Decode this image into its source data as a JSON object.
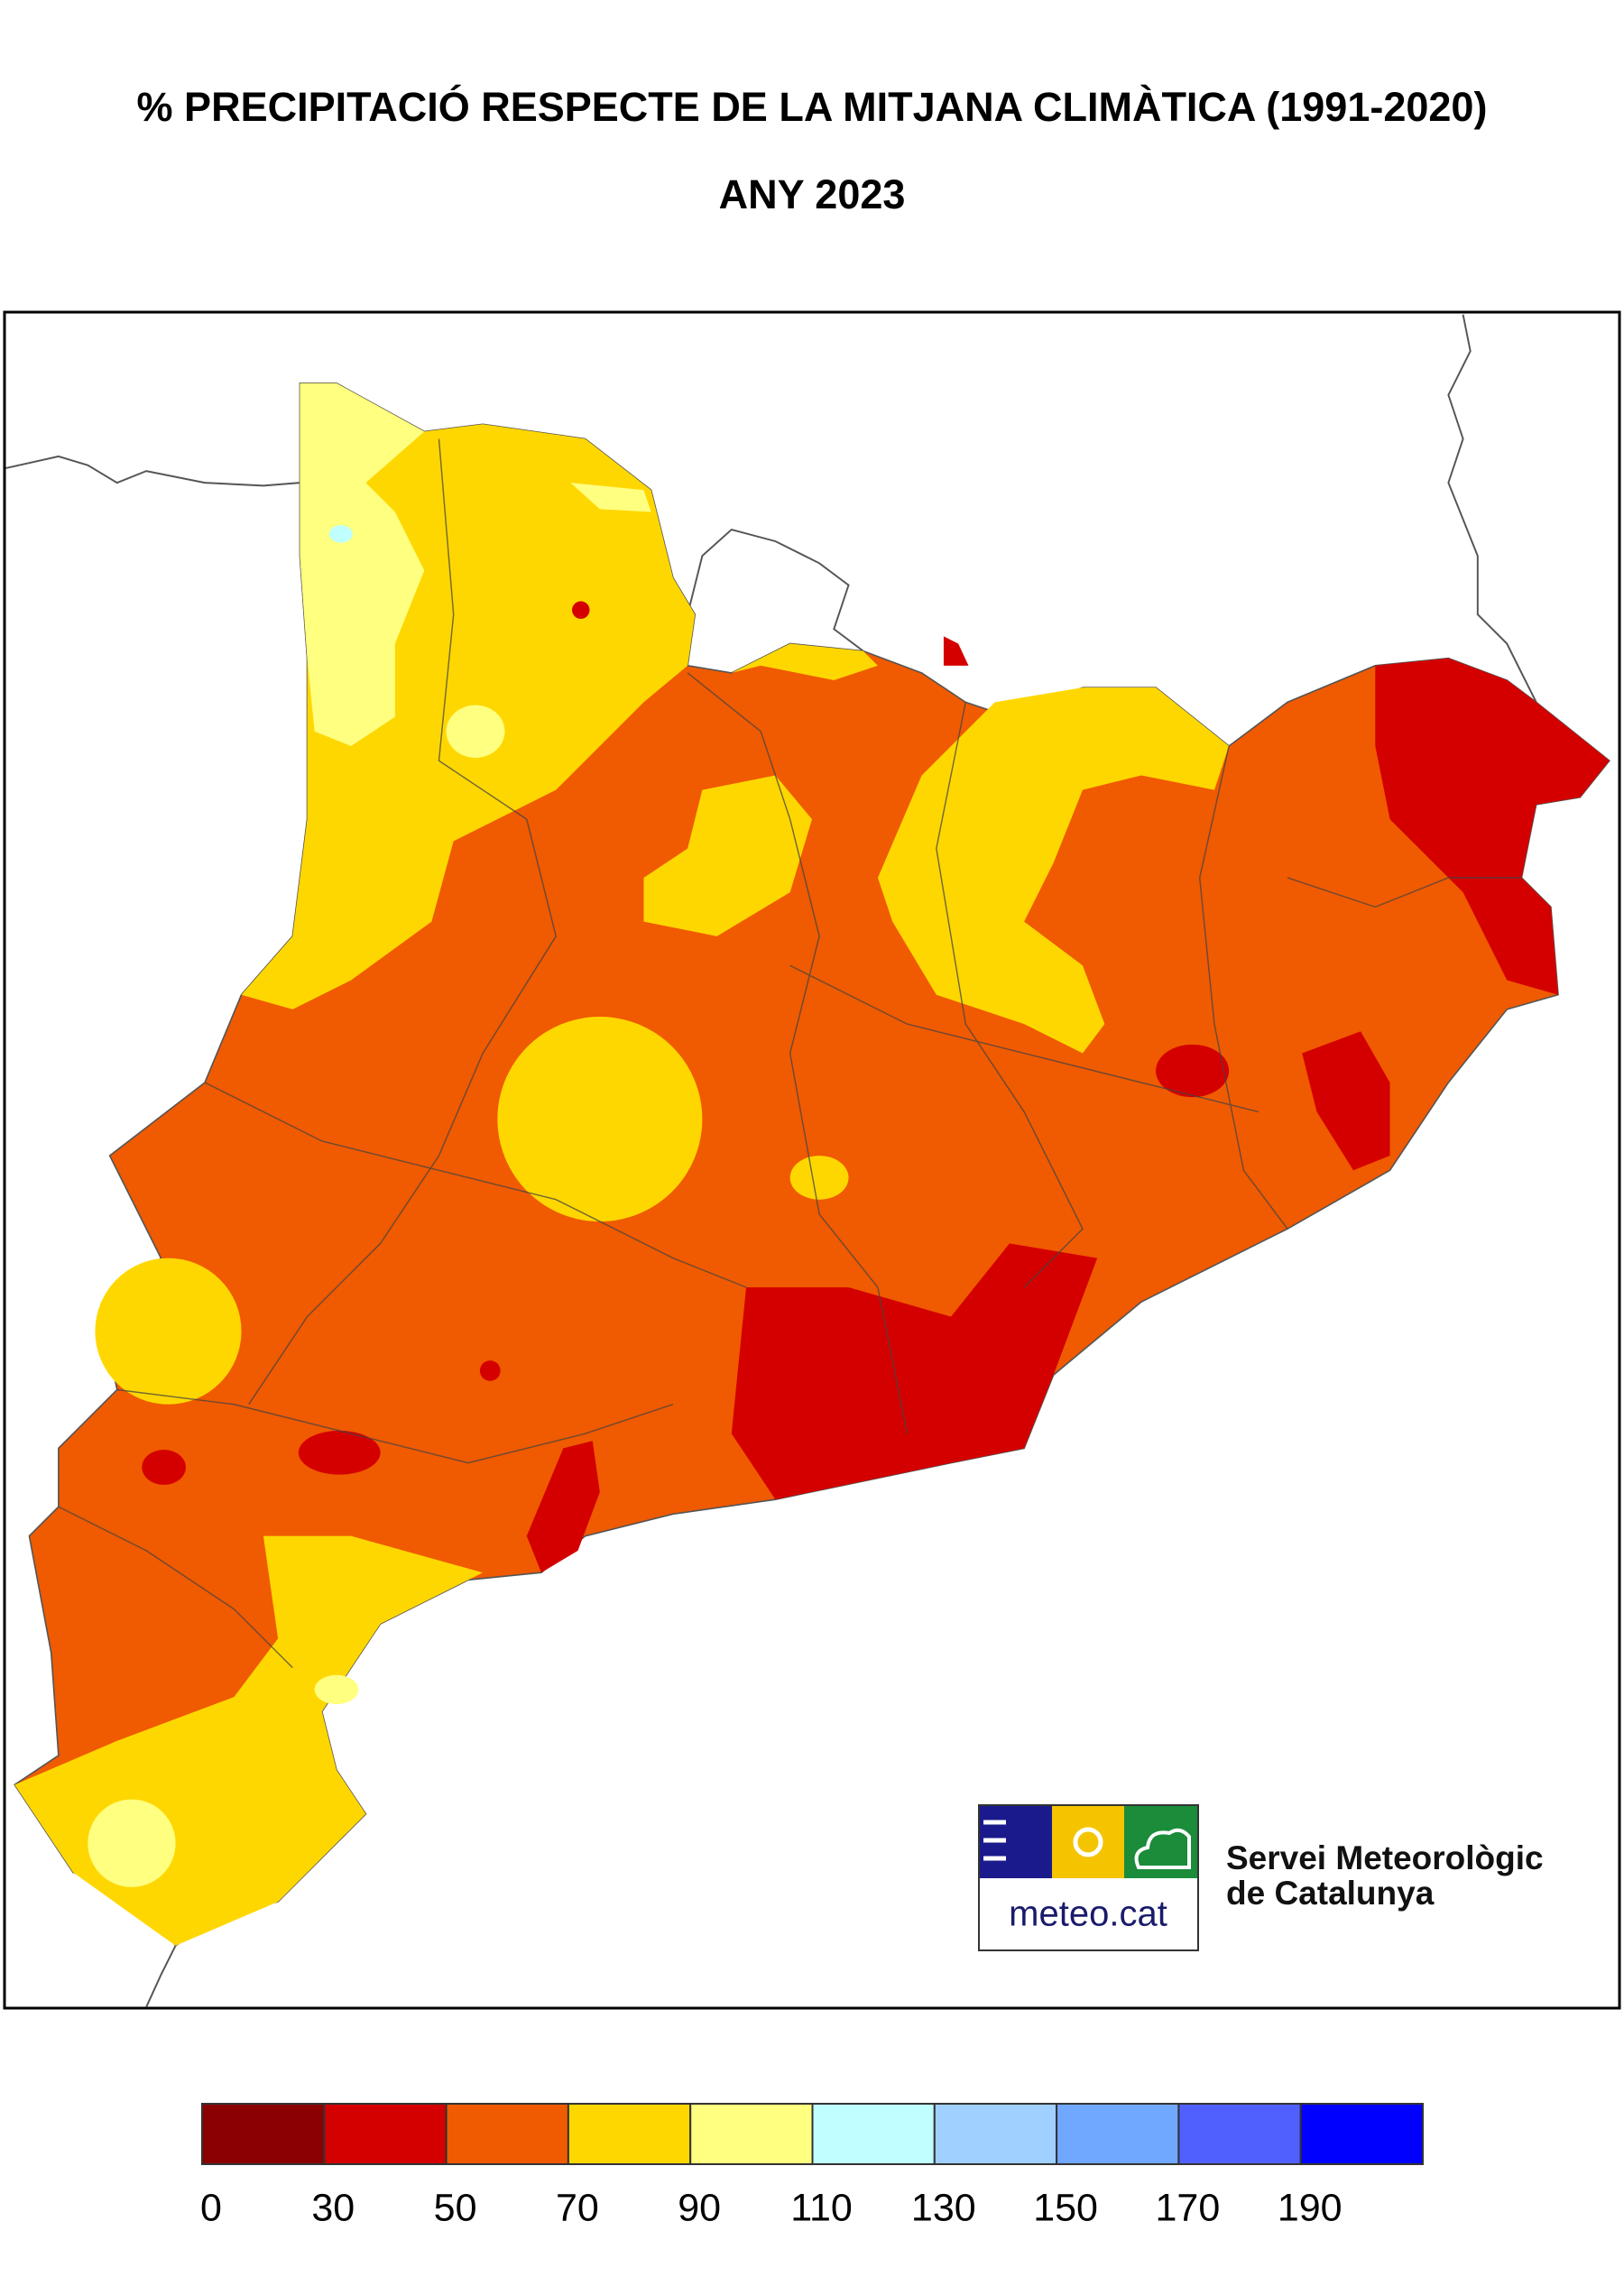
{
  "title": "% PRECIPITACIÓ RESPECTE DE LA MITJANA CLIMÀTICA (1991-2020)",
  "subtitle": "ANY 2023",
  "legend": {
    "colors": [
      "#8b0000",
      "#d40000",
      "#f05a00",
      "#ffd700",
      "#ffff80",
      "#c0ffff",
      "#a0d0ff",
      "#70a8ff",
      "#5060ff",
      "#0000ff"
    ],
    "ticks": [
      0,
      30,
      50,
      70,
      90,
      110,
      130,
      150,
      170,
      190
    ]
  },
  "logo": {
    "text": "meteo.cat",
    "org_line1": "Servei Meteorològic",
    "org_line2": "de Catalunya"
  }
}
